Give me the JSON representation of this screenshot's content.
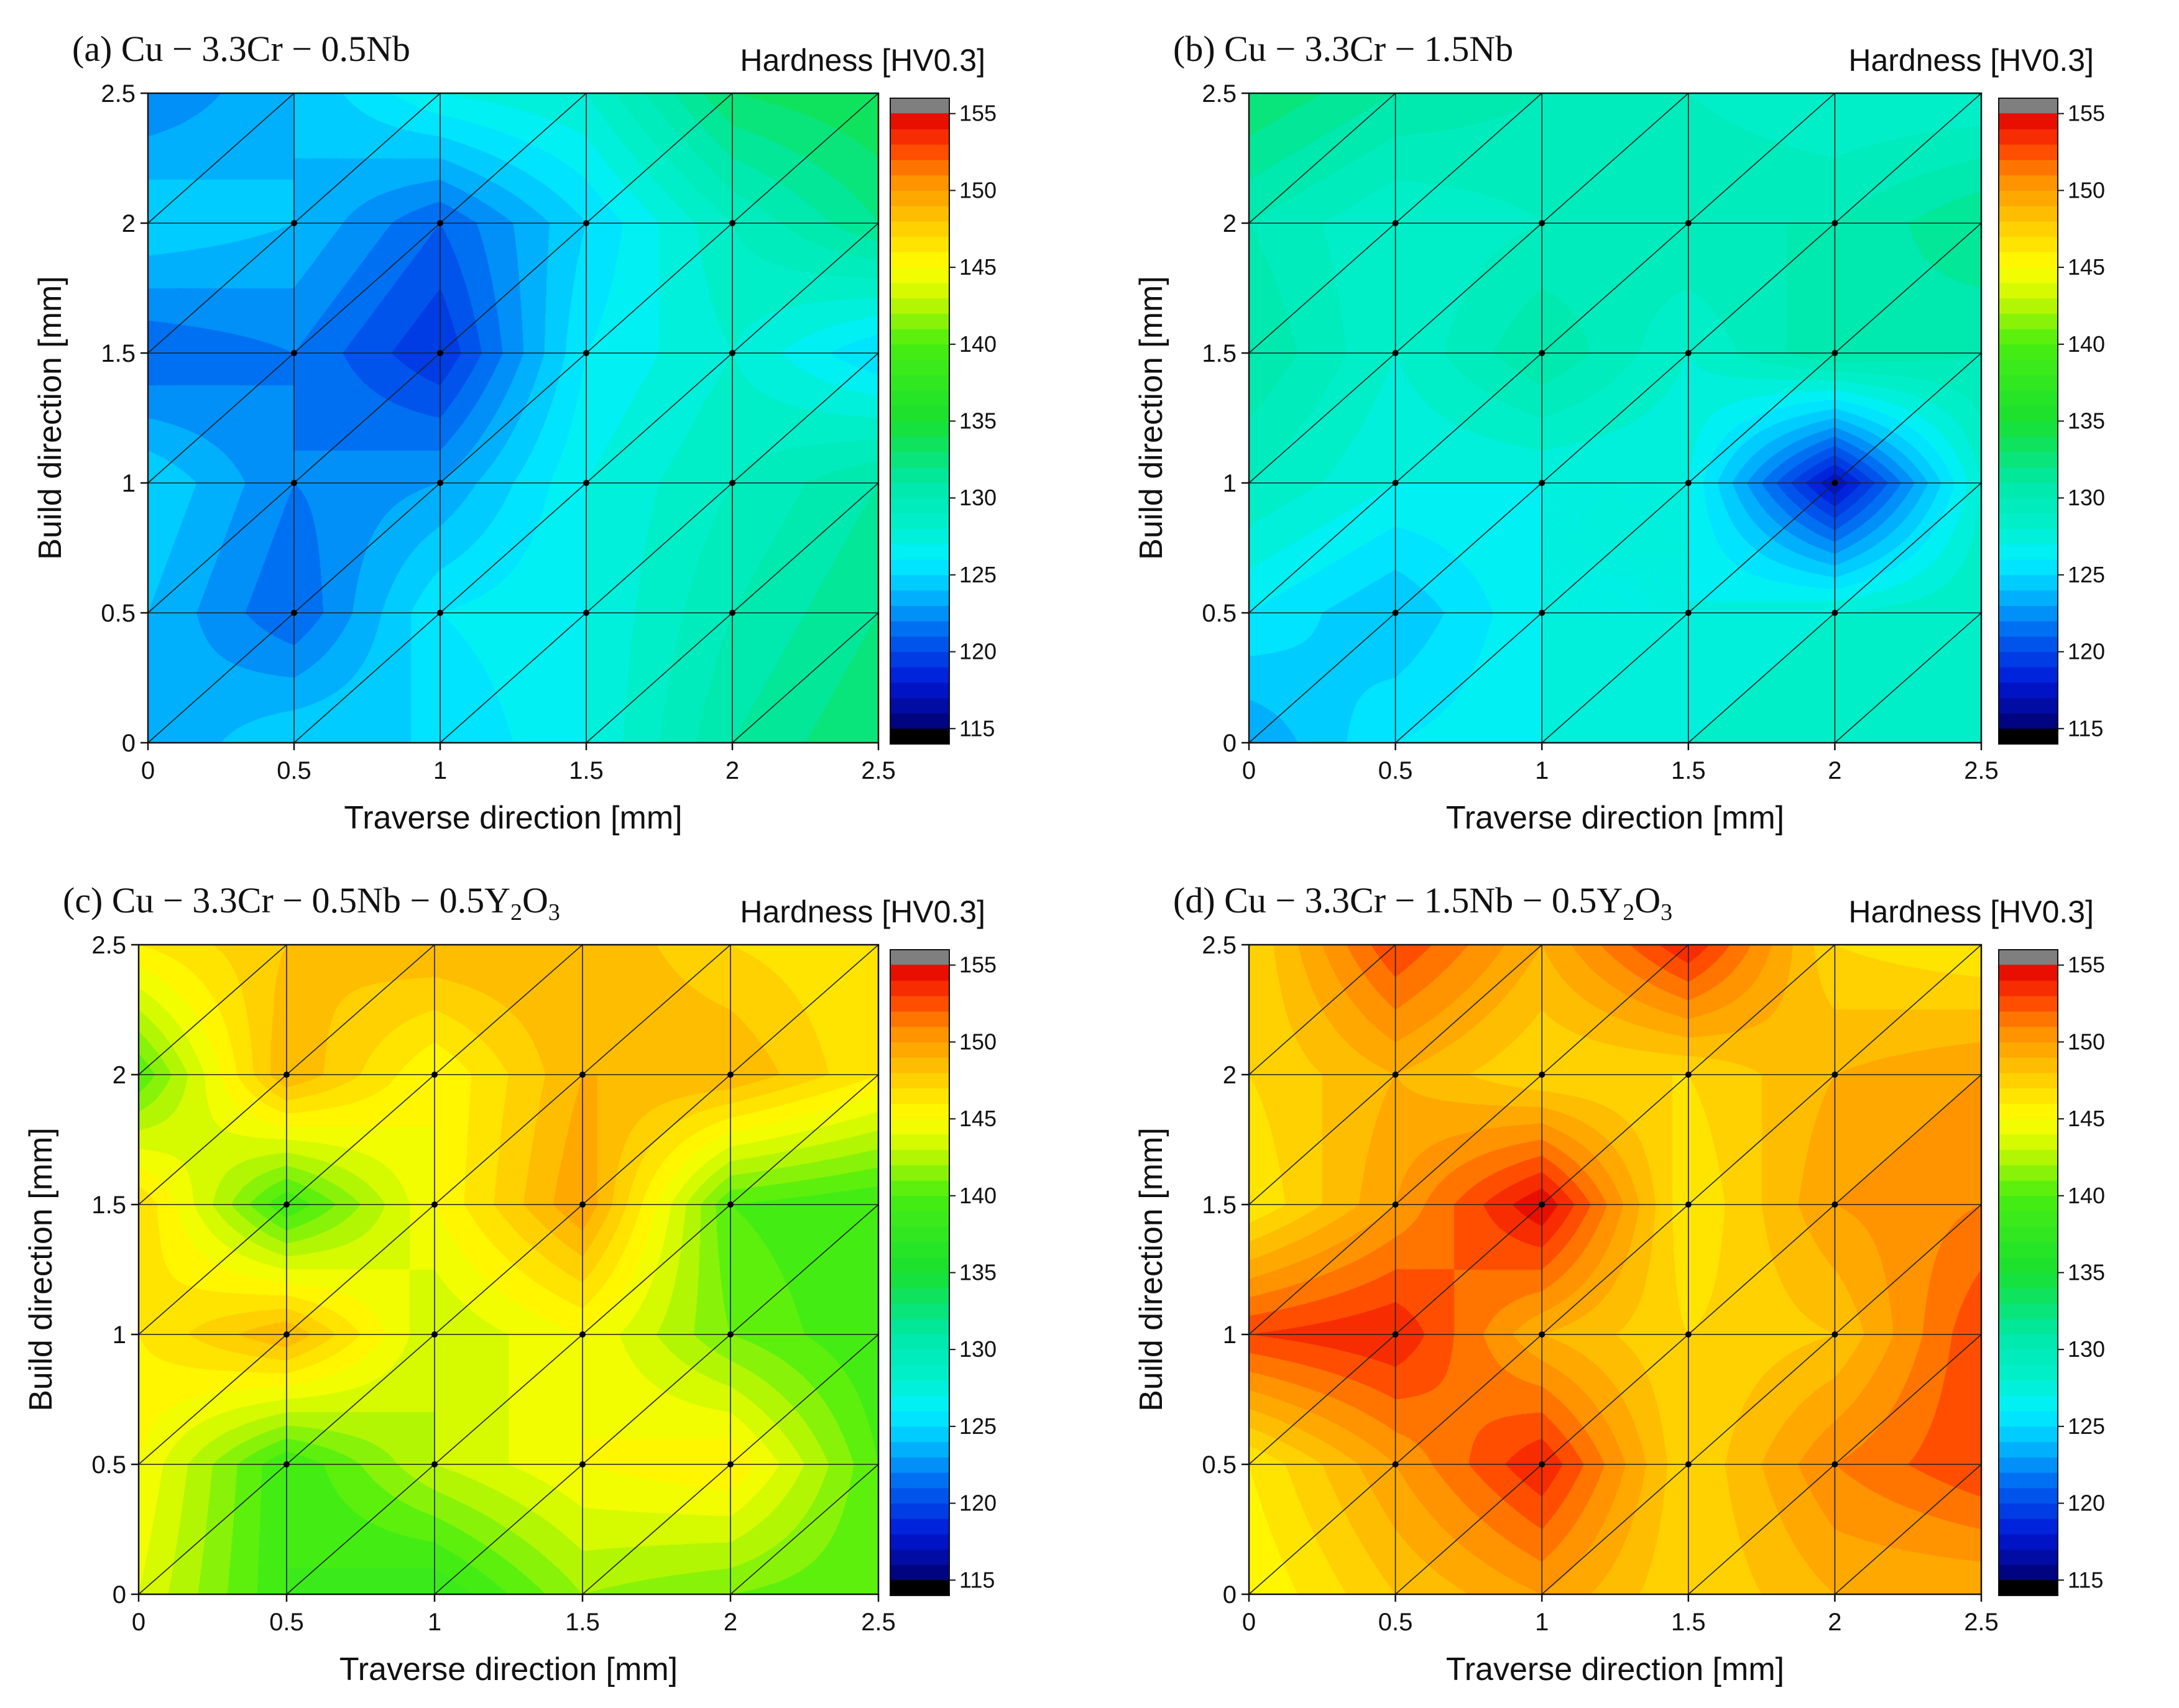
{
  "figure": {
    "colorbar_ticks": [
      115,
      120,
      125,
      130,
      135,
      140,
      145,
      150,
      155
    ],
    "colorbar_range": [
      114,
      156
    ],
    "colorscale": [
      [
        114,
        "#000000"
      ],
      [
        115,
        "#00006e"
      ],
      [
        118,
        "#0018d8"
      ],
      [
        121,
        "#0060f0"
      ],
      [
        124,
        "#00c0ff"
      ],
      [
        126,
        "#00f0ff"
      ],
      [
        128,
        "#00f0d0"
      ],
      [
        131,
        "#00e8a8"
      ],
      [
        135,
        "#18e030"
      ],
      [
        140,
        "#48ee10"
      ],
      [
        143,
        "#c8f800"
      ],
      [
        145,
        "#ffff00"
      ],
      [
        148,
        "#ffc800"
      ],
      [
        151,
        "#ff8800"
      ],
      [
        153,
        "#ff3a00"
      ],
      [
        155,
        "#e00000"
      ],
      [
        156,
        "#808080"
      ]
    ]
  },
  "chart_data": [
    {
      "type": "heatmap",
      "id": "a",
      "title_prefix": "(a) ",
      "title_main": "Cu − 3.3Cr − 0.5Nb",
      "title_subscript": "",
      "title_suffix": "",
      "colorbar_title": "Hardness [HV0.3]",
      "xlabel": "Traverse direction [mm]",
      "ylabel": "Build direction [mm]",
      "x": [
        0,
        0.5,
        1,
        1.5,
        2,
        2.5
      ],
      "y": [
        0,
        0.5,
        1,
        1.5,
        2,
        2.5
      ],
      "xlim": [
        0,
        2.5
      ],
      "ylim": [
        0,
        2.5
      ],
      "xtick_labels": [
        "0",
        "0.5",
        "1",
        "1.5",
        "2",
        "2.5"
      ],
      "ytick_labels": [
        "0",
        "0.5",
        "1",
        "1.5",
        "2",
        "2.5"
      ],
      "z": [
        [
          123,
          125,
          125,
          127,
          131,
          133
        ],
        [
          124,
          121,
          126,
          127,
          130,
          132
        ],
        [
          125,
          122,
          123,
          127,
          129,
          131
        ],
        [
          121,
          122,
          119,
          126,
          128,
          125
        ],
        [
          125,
          124,
          121,
          125,
          129,
          132
        ],
        [
          122,
          124,
          127,
          128,
          133,
          134
        ]
      ]
    },
    {
      "type": "heatmap",
      "id": "b",
      "title_prefix": "(b) ",
      "title_main": "Cu − 3.3Cr − 1.5Nb",
      "title_subscript": "",
      "title_suffix": "",
      "colorbar_title": "Hardness [HV0.3]",
      "xlabel": "Traverse direction [mm]",
      "ylabel": "Build direction [mm]",
      "x": [
        0,
        0.5,
        1,
        1.5,
        2,
        2.5
      ],
      "y": [
        0,
        0.5,
        1,
        1.5,
        2,
        2.5
      ],
      "xlim": [
        0,
        2.5
      ],
      "ylim": [
        0,
        2.5
      ],
      "xtick_labels": [
        "0",
        "0.5",
        "1",
        "1.5",
        "2",
        "2.5"
      ],
      "ytick_labels": [
        "0",
        "0.5",
        "1",
        "1.5",
        "2",
        "2.5"
      ],
      "z": [
        [
          123,
          126,
          127,
          128,
          129,
          129
        ],
        [
          126,
          124,
          127,
          127,
          128,
          129
        ],
        [
          129,
          127,
          127,
          127,
          117,
          128
        ],
        [
          131,
          128,
          131,
          128,
          131,
          130
        ],
        [
          130,
          128,
          129,
          130,
          130,
          132
        ],
        [
          133,
          131,
          130,
          129,
          128,
          128
        ]
      ]
    },
    {
      "type": "heatmap",
      "id": "c",
      "title_prefix": "(c) ",
      "title_main": "Cu − 3.3Cr − 0.5Nb − 0.5Y",
      "title_subscript": "2",
      "title_suffix": "O₃",
      "colorbar_title": "Hardness [HV0.3]",
      "xlabel": "Traverse direction [mm]",
      "ylabel": "Build direction [mm]",
      "x": [
        0,
        0.5,
        1,
        1.5,
        2,
        2.5
      ],
      "y": [
        0,
        0.5,
        1,
        1.5,
        2,
        2.5
      ],
      "xlim": [
        0,
        2.5
      ],
      "ylim": [
        0,
        2.5
      ],
      "xtick_labels": [
        "0",
        "0.5",
        "1",
        "1.5",
        "2",
        "2.5"
      ],
      "ytick_labels": [
        "0",
        "0.5",
        "1",
        "1.5",
        "2",
        "2.5"
      ],
      "z": [
        [
          144,
          139,
          138,
          142,
          141,
          140
        ],
        [
          145,
          139,
          143,
          145,
          146,
          140
        ],
        [
          146,
          149,
          143,
          145,
          141,
          139
        ],
        [
          147,
          139,
          145,
          150,
          140,
          139
        ],
        [
          140,
          149,
          145,
          149,
          149,
          146
        ],
        [
          146,
          148,
          149,
          149,
          147,
          146
        ]
      ]
    },
    {
      "type": "heatmap",
      "id": "d",
      "title_prefix": "(d) ",
      "title_main": "Cu − 3.3Cr − 1.5Nb − 0.5Y",
      "title_subscript": "2",
      "title_suffix": "O₃",
      "colorbar_title": "Hardness [HV0.3]",
      "xlabel": "Traverse direction [mm]",
      "ylabel": "Build direction [mm]",
      "x": [
        0,
        0.5,
        1,
        1.5,
        2,
        2.5
      ],
      "y": [
        0,
        0.5,
        1,
        1.5,
        2,
        2.5
      ],
      "xlim": [
        0,
        2.5
      ],
      "ylim": [
        0,
        2.5
      ],
      "xtick_labels": [
        "0",
        "0.5",
        "1",
        "1.5",
        "2",
        "2.5"
      ],
      "ytick_labels": [
        "0",
        "0.5",
        "1",
        "1.5",
        "2",
        "2.5"
      ],
      "z": [
        [
          145,
          148,
          150,
          147,
          149,
          149
        ],
        [
          146,
          150,
          154,
          147,
          151,
          153
        ],
        [
          153,
          154,
          149,
          147,
          148,
          153
        ],
        [
          146,
          150,
          155,
          146,
          150,
          151
        ],
        [
          147,
          149,
          147,
          147,
          149,
          150
        ],
        [
          147,
          153,
          149,
          154,
          147,
          146
        ]
      ]
    }
  ]
}
